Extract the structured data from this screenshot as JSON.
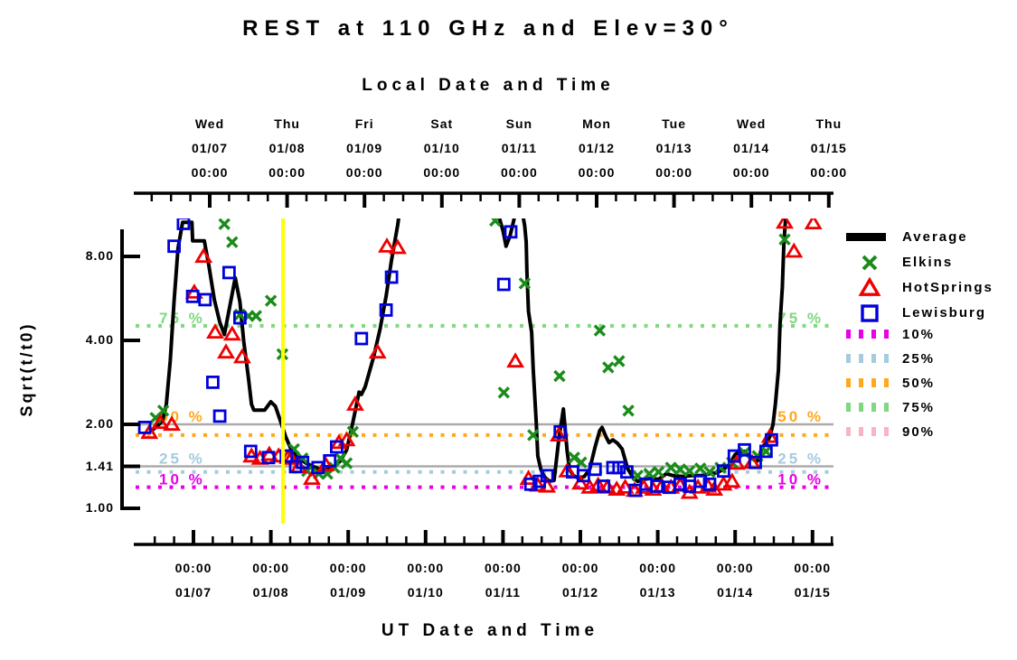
{
  "title": "REST at 110 GHz and Elev=30°",
  "axes": {
    "top": {
      "title": "Local Date and Time",
      "day_row": [
        "Wed",
        "Thu",
        "Fri",
        "Sat",
        "Sun",
        "Mon",
        "Tue",
        "Wed",
        "Thu"
      ],
      "date_row": [
        "01/07",
        "01/08",
        "01/09",
        "01/10",
        "01/11",
        "01/12",
        "01/13",
        "01/14",
        "01/15"
      ],
      "time_row": [
        "00:00",
        "00:00",
        "00:00",
        "00:00",
        "00:00",
        "00:00",
        "00:00",
        "00:00",
        "00:00"
      ]
    },
    "bottom": {
      "title": "UT Date and Time",
      "time_row": [
        "00:00",
        "00:00",
        "00:00",
        "00:00",
        "00:00",
        "00:00",
        "00:00",
        "00:00",
        "00:00"
      ],
      "date_row": [
        "01/07",
        "01/08",
        "01/09",
        "01/10",
        "01/11",
        "01/12",
        "01/13",
        "01/14",
        "01/15"
      ]
    },
    "y": {
      "title": "Sqrt(t/t0)",
      "tick_labels": [
        "8.00",
        "4.00",
        "2.00",
        "1.41",
        "1.00"
      ],
      "tick_values": [
        8.0,
        4.0,
        2.0,
        1.414,
        1.0
      ]
    }
  },
  "legend": {
    "entries": [
      {
        "label": "Average",
        "swatch": "thick-line",
        "color": "#000000"
      },
      {
        "label": "Elkins",
        "swatch": "x-marker",
        "color": "#1A8C1A"
      },
      {
        "label": "HotSprings",
        "swatch": "triangle-marker",
        "color": "#EE0000"
      },
      {
        "label": "Lewisburg",
        "swatch": "square-marker",
        "color": "#0000DD"
      },
      {
        "label": "10%",
        "swatch": "dashes",
        "color": "#E800E8"
      },
      {
        "label": "25%",
        "swatch": "dashes",
        "color": "#A6CBDC"
      },
      {
        "label": "50%",
        "swatch": "dashes",
        "color": "#FFA81E"
      },
      {
        "label": "75%",
        "swatch": "dashes",
        "color": "#7FD87F"
      },
      {
        "label": "90%",
        "swatch": "dashes",
        "color": "#F9B4C4"
      }
    ]
  },
  "chart_data": {
    "type": "line",
    "title": "REST at 110 GHz and Elev=30°",
    "xlabel_top": "Local Date and Time",
    "xlabel_bottom": "UT Date and Time",
    "ylabel": "Sqrt(t/t0)",
    "x_unit": "days since 01/07 00:00 UT",
    "x_range_days": [
      -0.75,
      8.27
    ],
    "y_scale": "log2",
    "y_range": [
      1.0,
      10.94
    ],
    "utc_offset_days": 0.2103,
    "off_scale_value": 12.0,
    "grid": false,
    "legend_position": "right",
    "reference_lines": [
      {
        "value": 2.0,
        "color": "#ABABAB"
      },
      {
        "value": 1.414,
        "color": "#ABABAB"
      }
    ],
    "percentile_lines": [
      {
        "label": "10 %",
        "value": 1.19,
        "color": "#E800E8",
        "visible": true,
        "label_anchor": 1.19
      },
      {
        "label": "25 %",
        "value": 1.35,
        "color": "#A6CBDC",
        "visible": true,
        "label_anchor": 1.414
      },
      {
        "label": "50 %",
        "value": 1.83,
        "color": "#FFA81E",
        "visible": true,
        "label_anchor": 2.0
      },
      {
        "label": "75 %",
        "value": 4.51,
        "color": "#7FD87F",
        "visible": true,
        "label_anchor": 4.51
      },
      {
        "label": "90 %",
        "value": null,
        "color": "#F9B4C4",
        "visible": false,
        "label_anchor": null
      }
    ],
    "time_marker": {
      "day": 1.157,
      "color": "#FFFF00"
    },
    "series": [
      {
        "name": "Average",
        "type": "line",
        "color": "#000000",
        "points": [
          [
            -0.54,
            1.9
          ],
          [
            -0.46,
            1.98
          ],
          [
            -0.4,
            2.06
          ],
          [
            -0.35,
            2.36
          ],
          [
            -0.3,
            3.37
          ],
          [
            -0.25,
            5.55
          ],
          [
            -0.2,
            8.55
          ],
          [
            -0.14,
            10.6
          ],
          [
            -0.02,
            10.6
          ],
          [
            -0.01,
            9.1
          ],
          [
            0.14,
            9.1
          ],
          [
            0.2,
            7.4
          ],
          [
            0.27,
            5.6
          ],
          [
            0.34,
            4.65
          ],
          [
            0.4,
            4.2
          ],
          [
            0.47,
            5.3
          ],
          [
            0.54,
            6.7
          ],
          [
            0.6,
            5.5
          ],
          [
            0.65,
            3.97
          ],
          [
            0.71,
            2.94
          ],
          [
            0.75,
            2.36
          ],
          [
            0.78,
            2.25
          ],
          [
            0.92,
            2.25
          ],
          [
            1.0,
            2.41
          ],
          [
            1.06,
            2.32
          ],
          [
            1.12,
            2.07
          ],
          [
            1.19,
            1.81
          ],
          [
            1.26,
            1.63
          ],
          [
            1.33,
            1.54
          ],
          [
            1.44,
            1.46
          ],
          [
            1.55,
            1.41
          ],
          [
            1.67,
            1.37
          ],
          [
            1.79,
            1.39
          ],
          [
            1.9,
            1.48
          ],
          [
            1.98,
            1.62
          ],
          [
            2.06,
            2.03
          ],
          [
            2.14,
            2.61
          ],
          [
            2.17,
            2.56
          ],
          [
            2.22,
            2.73
          ],
          [
            2.33,
            3.5
          ],
          [
            2.41,
            4.37
          ],
          [
            2.49,
            5.76
          ],
          [
            2.56,
            7.76
          ],
          [
            2.64,
            10.4
          ],
          [
            2.67,
            12.0
          ],
          [
            3.93,
            12.0
          ],
          [
            3.96,
            10.8
          ],
          [
            4.0,
            9.9
          ],
          [
            4.04,
            8.7
          ],
          [
            4.09,
            9.45
          ],
          [
            4.14,
            10.8
          ],
          [
            4.17,
            12.0
          ],
          [
            4.24,
            12.0
          ],
          [
            4.28,
            10.3
          ],
          [
            4.3,
            9.0
          ],
          [
            4.31,
            7.0
          ],
          [
            4.33,
            5.08
          ],
          [
            4.37,
            4.28
          ],
          [
            4.39,
            3.17
          ],
          [
            4.43,
            2.03
          ],
          [
            4.45,
            1.54
          ],
          [
            4.49,
            1.38
          ],
          [
            4.53,
            1.3
          ],
          [
            4.6,
            1.25
          ],
          [
            4.66,
            1.26
          ],
          [
            4.72,
            1.75
          ],
          [
            4.78,
            2.27
          ],
          [
            4.83,
            1.6
          ],
          [
            4.86,
            1.38
          ],
          [
            4.91,
            1.31
          ],
          [
            4.98,
            1.28
          ],
          [
            5.05,
            1.3
          ],
          [
            5.12,
            1.38
          ],
          [
            5.19,
            1.66
          ],
          [
            5.25,
            1.9
          ],
          [
            5.28,
            1.95
          ],
          [
            5.33,
            1.81
          ],
          [
            5.37,
            1.72
          ],
          [
            5.42,
            1.76
          ],
          [
            5.48,
            1.71
          ],
          [
            5.54,
            1.63
          ],
          [
            5.61,
            1.39
          ],
          [
            5.68,
            1.29
          ],
          [
            5.74,
            1.25
          ],
          [
            5.82,
            1.27
          ],
          [
            5.91,
            1.28
          ],
          [
            6.01,
            1.27
          ],
          [
            6.11,
            1.33
          ],
          [
            6.2,
            1.31
          ],
          [
            6.32,
            1.3
          ],
          [
            6.44,
            1.31
          ],
          [
            6.58,
            1.31
          ],
          [
            6.67,
            1.33
          ],
          [
            6.76,
            1.34
          ],
          [
            6.85,
            1.38
          ],
          [
            6.93,
            1.44
          ],
          [
            7.0,
            1.56
          ],
          [
            7.06,
            1.59
          ],
          [
            7.12,
            1.6
          ],
          [
            7.17,
            1.54
          ],
          [
            7.23,
            1.5
          ],
          [
            7.29,
            1.48
          ],
          [
            7.35,
            1.66
          ],
          [
            7.41,
            1.72
          ],
          [
            7.45,
            1.81
          ],
          [
            7.49,
            2.0
          ],
          [
            7.52,
            2.36
          ],
          [
            7.56,
            3.13
          ],
          [
            7.58,
            4.54
          ],
          [
            7.61,
            6.2
          ],
          [
            7.63,
            8.85
          ],
          [
            7.65,
            10.7
          ],
          [
            7.67,
            12.0
          ]
        ]
      },
      {
        "name": "Elkins",
        "type": "scatter",
        "marker": "x",
        "color": "#1A8C1A",
        "points": [
          [
            -0.49,
            2.11
          ],
          [
            -0.39,
            2.24
          ],
          [
            0.4,
            10.45
          ],
          [
            0.5,
            9.0
          ],
          [
            0.6,
            4.95
          ],
          [
            0.71,
            4.89
          ],
          [
            0.81,
            4.89
          ],
          [
            1.0,
            5.55
          ],
          [
            1.15,
            3.57
          ],
          [
            1.3,
            1.63
          ],
          [
            1.41,
            1.51
          ],
          [
            1.47,
            1.36
          ],
          [
            1.62,
            1.33
          ],
          [
            1.73,
            1.33
          ],
          [
            1.82,
            1.4
          ],
          [
            1.9,
            1.51
          ],
          [
            1.98,
            1.45
          ],
          [
            2.06,
            1.88
          ],
          [
            3.9,
            10.75
          ],
          [
            4.01,
            2.6
          ],
          [
            4.28,
            6.4
          ],
          [
            4.39,
            1.83
          ],
          [
            4.73,
            2.98
          ],
          [
            4.92,
            1.52
          ],
          [
            5.01,
            1.46
          ],
          [
            5.25,
            4.34
          ],
          [
            5.36,
            3.2
          ],
          [
            5.5,
            3.37
          ],
          [
            5.62,
            2.24
          ],
          [
            5.74,
            1.31
          ],
          [
            5.89,
            1.33
          ],
          [
            6.01,
            1.35
          ],
          [
            6.17,
            1.4
          ],
          [
            6.29,
            1.38
          ],
          [
            6.41,
            1.36
          ],
          [
            6.55,
            1.39
          ],
          [
            6.67,
            1.35
          ],
          [
            6.81,
            1.4
          ],
          [
            6.96,
            1.46
          ],
          [
            7.12,
            1.58
          ],
          [
            7.29,
            1.54
          ],
          [
            7.4,
            1.6
          ],
          [
            7.64,
            9.2
          ]
        ]
      },
      {
        "name": "HotSprings",
        "type": "scatter",
        "marker": "triangle",
        "color": "#EE0000",
        "points": [
          [
            -0.57,
            1.87
          ],
          [
            -0.43,
            2.03
          ],
          [
            -0.28,
            2.0
          ],
          [
            0.01,
            5.95
          ],
          [
            0.13,
            8.0
          ],
          [
            0.28,
            4.28
          ],
          [
            0.42,
            3.63
          ],
          [
            0.5,
            4.21
          ],
          [
            0.63,
            3.49
          ],
          [
            0.75,
            1.54
          ],
          [
            0.86,
            1.51
          ],
          [
            0.98,
            1.56
          ],
          [
            1.1,
            1.54
          ],
          [
            1.22,
            1.52
          ],
          [
            1.26,
            1.51
          ],
          [
            1.36,
            1.41
          ],
          [
            1.53,
            1.28
          ],
          [
            1.71,
            1.43
          ],
          [
            1.88,
            1.72
          ],
          [
            1.98,
            1.76
          ],
          [
            2.09,
            2.36
          ],
          [
            2.38,
            3.63
          ],
          [
            2.5,
            8.7
          ],
          [
            2.64,
            8.6
          ],
          [
            4.16,
            3.37
          ],
          [
            4.33,
            1.28
          ],
          [
            4.45,
            1.21
          ],
          [
            4.57,
            1.2
          ],
          [
            4.72,
            1.83
          ],
          [
            4.83,
            1.36
          ],
          [
            5.0,
            1.23
          ],
          [
            5.12,
            1.19
          ],
          [
            5.23,
            1.21
          ],
          [
            5.35,
            1.19
          ],
          [
            5.47,
            1.17
          ],
          [
            5.58,
            1.19
          ],
          [
            5.7,
            1.16
          ],
          [
            5.82,
            1.19
          ],
          [
            5.94,
            1.17
          ],
          [
            6.05,
            1.2
          ],
          [
            6.17,
            1.19
          ],
          [
            6.29,
            1.21
          ],
          [
            6.41,
            1.14
          ],
          [
            6.52,
            1.19
          ],
          [
            6.65,
            1.2
          ],
          [
            6.73,
            1.17
          ],
          [
            6.85,
            1.22
          ],
          [
            6.96,
            1.25
          ],
          [
            7.02,
            1.45
          ],
          [
            7.22,
            1.46
          ],
          [
            7.45,
            1.81
          ],
          [
            7.64,
            10.6
          ],
          [
            7.76,
            8.35
          ],
          [
            8.01,
            10.55
          ]
        ]
      },
      {
        "name": "Lewisburg",
        "type": "scatter",
        "marker": "square",
        "color": "#0000DD",
        "points": [
          [
            -0.63,
            1.95
          ],
          [
            -0.25,
            8.7
          ],
          [
            -0.13,
            10.5
          ],
          [
            -0.01,
            5.75
          ],
          [
            0.15,
            5.6
          ],
          [
            0.25,
            2.83
          ],
          [
            0.34,
            2.14
          ],
          [
            0.46,
            7.0
          ],
          [
            0.6,
            4.82
          ],
          [
            0.74,
            1.6
          ],
          [
            0.97,
            1.52
          ],
          [
            1.2,
            1.54
          ],
          [
            1.32,
            1.41
          ],
          [
            1.41,
            1.46
          ],
          [
            1.61,
            1.4
          ],
          [
            1.76,
            1.48
          ],
          [
            1.85,
            1.66
          ],
          [
            2.17,
            4.06
          ],
          [
            2.49,
            5.14
          ],
          [
            2.56,
            6.74
          ],
          [
            4.01,
            6.35
          ],
          [
            4.1,
            9.8
          ],
          [
            4.36,
            1.22
          ],
          [
            4.47,
            1.25
          ],
          [
            4.57,
            1.31
          ],
          [
            4.74,
            1.88
          ],
          [
            4.9,
            1.35
          ],
          [
            5.04,
            1.31
          ],
          [
            5.19,
            1.38
          ],
          [
            5.3,
            1.2
          ],
          [
            5.42,
            1.4
          ],
          [
            5.5,
            1.4
          ],
          [
            5.6,
            1.35
          ],
          [
            5.71,
            1.16
          ],
          [
            5.85,
            1.22
          ],
          [
            5.99,
            1.2
          ],
          [
            6.15,
            1.19
          ],
          [
            6.29,
            1.22
          ],
          [
            6.41,
            1.2
          ],
          [
            6.55,
            1.25
          ],
          [
            6.67,
            1.22
          ],
          [
            6.85,
            1.36
          ],
          [
            6.99,
            1.54
          ],
          [
            7.12,
            1.62
          ],
          [
            7.26,
            1.46
          ],
          [
            7.4,
            1.6
          ],
          [
            7.47,
            1.76
          ]
        ]
      }
    ]
  }
}
